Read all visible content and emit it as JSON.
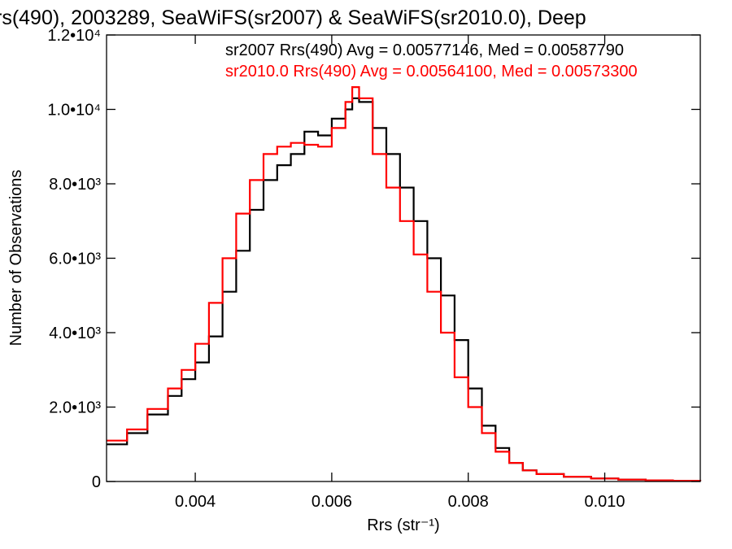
{
  "chart_data": {
    "type": "line",
    "title": "rs(490), 2003289, SeaWiFS(sr2007) & SeaWiFS(sr2010.0), Deep",
    "xlabel": "Rrs (str⁻¹)",
    "ylabel": "Number of Observations",
    "xlim": [
      0.0027,
      0.0114
    ],
    "ylim": [
      0,
      12000
    ],
    "grid": false,
    "x_ticks": [
      {
        "value": 0.004,
        "label": "0.004"
      },
      {
        "value": 0.006,
        "label": "0.006"
      },
      {
        "value": 0.008,
        "label": "0.008"
      },
      {
        "value": 0.01,
        "label": "0.010"
      }
    ],
    "y_ticks": [
      {
        "value": 0,
        "label": "0"
      },
      {
        "value": 2000,
        "label": "2.0•10³"
      },
      {
        "value": 4000,
        "label": "4.0•10³"
      },
      {
        "value": 6000,
        "label": "6.0•10³"
      },
      {
        "value": 8000,
        "label": "8.0•10³"
      },
      {
        "value": 10000,
        "label": "1.0•10⁴"
      },
      {
        "value": 12000,
        "label": "1.2•10⁴"
      }
    ],
    "annotations": [
      {
        "text": "sr2007 Rrs(490) Avg = 0.00577146, Med = 0.00587790",
        "color": "#000000"
      },
      {
        "text": "sr2010.0 Rrs(490) Avg = 0.00564100, Med = 0.00573300",
        "color": "#ff0000"
      }
    ],
    "series": [
      {
        "color": "#000000",
        "x": [
          0.0027,
          0.003,
          0.0033,
          0.0036,
          0.0038,
          0.004,
          0.0042,
          0.0044,
          0.0046,
          0.0048,
          0.005,
          0.0052,
          0.0054,
          0.0056,
          0.0058,
          0.006,
          0.0062,
          0.0063,
          0.0064,
          0.0066,
          0.0068,
          0.007,
          0.0072,
          0.0074,
          0.0076,
          0.0078,
          0.008,
          0.0082,
          0.0084,
          0.0086,
          0.0088,
          0.009,
          0.0094,
          0.0098,
          0.0102,
          0.0106,
          0.011,
          0.0114
        ],
        "y": [
          1000,
          1300,
          1800,
          2300,
          2750,
          3200,
          3900,
          5100,
          6200,
          7300,
          8100,
          8500,
          8800,
          9400,
          9300,
          9750,
          10000,
          10300,
          10200,
          9500,
          8800,
          7900,
          7000,
          6000,
          5000,
          3800,
          2500,
          1500,
          900,
          500,
          300,
          200,
          130,
          80,
          50,
          30,
          20,
          10
        ]
      },
      {
        "color": "#ff0000",
        "x": [
          0.0027,
          0.003,
          0.0033,
          0.0036,
          0.0038,
          0.004,
          0.0042,
          0.0044,
          0.0046,
          0.0048,
          0.005,
          0.0052,
          0.0054,
          0.0056,
          0.0058,
          0.006,
          0.0062,
          0.0063,
          0.0064,
          0.0066,
          0.0068,
          0.007,
          0.0072,
          0.0074,
          0.0076,
          0.0078,
          0.008,
          0.0082,
          0.0084,
          0.0086,
          0.0088,
          0.009,
          0.0094,
          0.0098,
          0.0102,
          0.0106,
          0.011,
          0.0114
        ],
        "y": [
          1100,
          1400,
          1950,
          2500,
          3000,
          3700,
          4800,
          6000,
          7200,
          8100,
          8800,
          9000,
          9100,
          9050,
          9000,
          9500,
          10200,
          10600,
          10300,
          8800,
          7900,
          7000,
          6100,
          5100,
          4000,
          2800,
          2000,
          1300,
          800,
          500,
          300,
          200,
          130,
          80,
          50,
          30,
          20,
          10
        ]
      }
    ]
  }
}
